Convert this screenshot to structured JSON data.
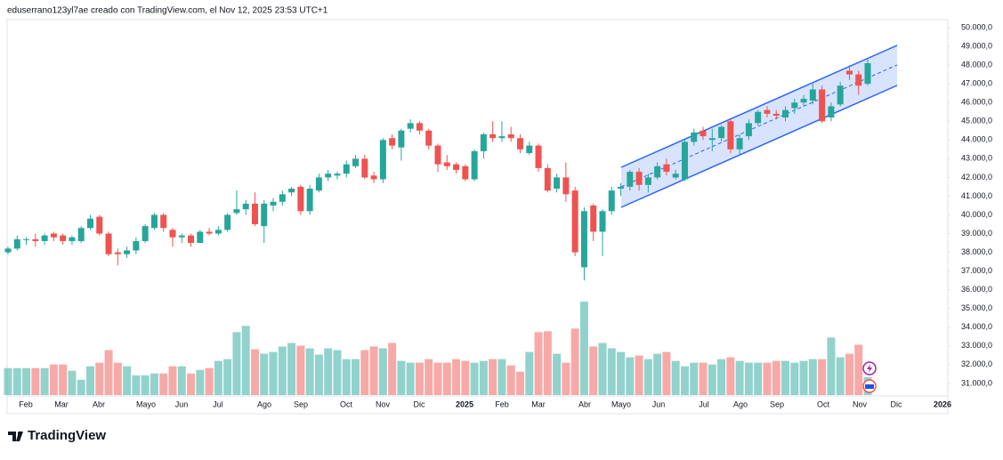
{
  "chart_data": {
    "type": "candlestick",
    "title": "eduserrano123yl7ae creado con TradingView.com, el Nov 12, 2025 23:53 UTC+1",
    "watermark": "TradingView",
    "up_color": "#26a69a",
    "down_color": "#ef5350",
    "grid": false,
    "ylim": [
      30330,
      50430
    ],
    "yticks": [
      {
        "value": 31000,
        "label": "31.000,0"
      },
      {
        "value": 32000,
        "label": "32.000,0"
      },
      {
        "value": 33000,
        "label": "33.000,0"
      },
      {
        "value": 34000,
        "label": "34.000,0"
      },
      {
        "value": 35000,
        "label": "35.000,0"
      },
      {
        "value": 36000,
        "label": "36.000,0"
      },
      {
        "value": 37000,
        "label": "37.000,0"
      },
      {
        "value": 38000,
        "label": "38.000,0"
      },
      {
        "value": 39000,
        "label": "39.000,0"
      },
      {
        "value": 40000,
        "label": "40.000,0"
      },
      {
        "value": 41000,
        "label": "41.000,0"
      },
      {
        "value": 42000,
        "label": "42.000,0"
      },
      {
        "value": 43000,
        "label": "43.000,0"
      },
      {
        "value": 44000,
        "label": "44.000,0"
      },
      {
        "value": 45000,
        "label": "45.000,0"
      },
      {
        "value": 46000,
        "label": "46.000,0"
      },
      {
        "value": 47000,
        "label": "47.000,0"
      },
      {
        "value": 48000,
        "label": "48.000,0"
      },
      {
        "value": 49000,
        "label": "49.000,0"
      },
      {
        "value": 50000,
        "label": "50.000,0"
      }
    ],
    "xtick_labels": [
      "Feb",
      "Mar",
      "Abr",
      "Mayo",
      "Jun",
      "Jul",
      "Ago",
      "Sep",
      "Oct",
      "Nov",
      "Dic",
      "2025",
      "Feb",
      "Mar",
      "Abr",
      "Mayo",
      "Jun",
      "Jul",
      "Ago",
      "Sep",
      "Oct",
      "Nov",
      "Dic",
      "2026"
    ],
    "open": [
      38000,
      38200,
      38700,
      38700,
      38600,
      39000,
      38900,
      38600,
      38600,
      39300,
      39900,
      39000,
      38000,
      37900,
      38100,
      38600,
      39300,
      40000,
      39200,
      38800,
      38900,
      38500,
      39100,
      39000,
      39200,
      40100,
      40300,
      40600,
      39400,
      40500,
      40700,
      41200,
      41500,
      40200,
      41300,
      42000,
      42100,
      42200,
      42600,
      43000,
      42100,
      41900,
      44100,
      43600,
      44600,
      44900,
      44500,
      43700,
      42800,
      42700,
      42600,
      41900,
      43400,
      44300,
      44100,
      44300,
      44100,
      43300,
      43700,
      42500,
      41400,
      42000,
      41300,
      37200,
      40500,
      39100,
      40200,
      41400,
      41500,
      42300,
      41600,
      42000,
      42700,
      42000,
      41900,
      43900,
      44500,
      44000,
      44100,
      45000,
      43500,
      44200,
      44900,
      45600,
      45400,
      45200,
      45700,
      46000,
      46100,
      46700,
      45200,
      45900,
      47700,
      47500,
      47000
    ],
    "high": [
      38300,
      38900,
      38800,
      39000,
      39000,
      39100,
      39000,
      38900,
      39400,
      40000,
      40000,
      39100,
      38200,
      38300,
      38800,
      39500,
      40100,
      40100,
      39300,
      39000,
      39000,
      39200,
      39300,
      39400,
      40100,
      41300,
      40800,
      41200,
      40800,
      40900,
      41300,
      41500,
      41600,
      41600,
      42200,
      42400,
      42300,
      42900,
      43200,
      43200,
      42300,
      44100,
      44300,
      44600,
      45100,
      45000,
      44600,
      43800,
      43200,
      42800,
      42700,
      43500,
      44400,
      45000,
      45000,
      44700,
      44300,
      43900,
      43800,
      42700,
      42200,
      42800,
      41500,
      40400,
      40600,
      40300,
      41500,
      41700,
      42400,
      42500,
      42200,
      42800,
      43000,
      42400,
      44000,
      44600,
      44700,
      44600,
      44800,
      45100,
      44300,
      45100,
      45600,
      45800,
      45600,
      45800,
      46200,
      46400,
      47000,
      46900,
      46000,
      47100,
      48000,
      47700,
      48300
    ],
    "low": [
      37900,
      38100,
      38400,
      38300,
      38400,
      38600,
      38400,
      38400,
      38500,
      39200,
      38900,
      37800,
      37300,
      37700,
      37900,
      38500,
      39200,
      39100,
      38300,
      38500,
      38300,
      38500,
      38900,
      38900,
      39100,
      40000,
      40000,
      39400,
      38500,
      40200,
      40500,
      41000,
      40000,
      40000,
      41200,
      41800,
      41900,
      42000,
      42500,
      41900,
      41700,
      41700,
      43500,
      42900,
      44400,
      44300,
      43500,
      42300,
      42400,
      42200,
      41800,
      41800,
      43000,
      43900,
      43900,
      43900,
      43300,
      43200,
      42300,
      41200,
      41200,
      40700,
      37800,
      36500,
      38600,
      37800,
      40000,
      41000,
      41300,
      41300,
      41200,
      41900,
      42100,
      41900,
      41800,
      43700,
      44000,
      43400,
      43900,
      43300,
      43200,
      44000,
      44800,
      45200,
      45100,
      45000,
      45400,
      45800,
      45900,
      44900,
      45000,
      45800,
      47200,
      46400,
      46900
    ],
    "close": [
      38200,
      38700,
      38700,
      38600,
      38900,
      38800,
      38600,
      38800,
      39300,
      39800,
      39000,
      37900,
      37900,
      38100,
      38600,
      39400,
      40000,
      39300,
      38800,
      38900,
      38500,
      39100,
      39000,
      39200,
      40000,
      40300,
      40600,
      39500,
      40600,
      40700,
      41100,
      41400,
      40200,
      41400,
      42000,
      42200,
      42200,
      42700,
      43000,
      42000,
      41900,
      44000,
      43700,
      44500,
      44900,
      44500,
      43700,
      42700,
      42600,
      42400,
      41900,
      43400,
      44300,
      44100,
      44200,
      44100,
      43500,
      43700,
      42500,
      41300,
      42000,
      41100,
      38000,
      40200,
      39100,
      40200,
      41300,
      41500,
      42300,
      41600,
      42000,
      42600,
      42300,
      42200,
      43900,
      44400,
      44200,
      44100,
      44700,
      43500,
      44100,
      44900,
      45500,
      45400,
      45300,
      45600,
      46000,
      46200,
      46700,
      45000,
      45800,
      46900,
      47500,
      46900,
      48100
    ],
    "volume": [
      30,
      30,
      30,
      30,
      30,
      34,
      34,
      27,
      17,
      32,
      36,
      50,
      36,
      32,
      22,
      22,
      24,
      24,
      32,
      32,
      24,
      28,
      30,
      38,
      40,
      70,
      77,
      51,
      46,
      48,
      54,
      58,
      55,
      52,
      45,
      52,
      50,
      40,
      40,
      50,
      54,
      52,
      58,
      38,
      36,
      36,
      40,
      36,
      36,
      40,
      38,
      36,
      38,
      40,
      40,
      33,
      26,
      48,
      70,
      71,
      46,
      36,
      74,
      104,
      54,
      58,
      52,
      48,
      42,
      44,
      40,
      46,
      48,
      38,
      32,
      36,
      36,
      34,
      40,
      42,
      38,
      36,
      36,
      36,
      38,
      38,
      36,
      38,
      40,
      40,
      64,
      42,
      46,
      56,
      20
    ]
  }
}
